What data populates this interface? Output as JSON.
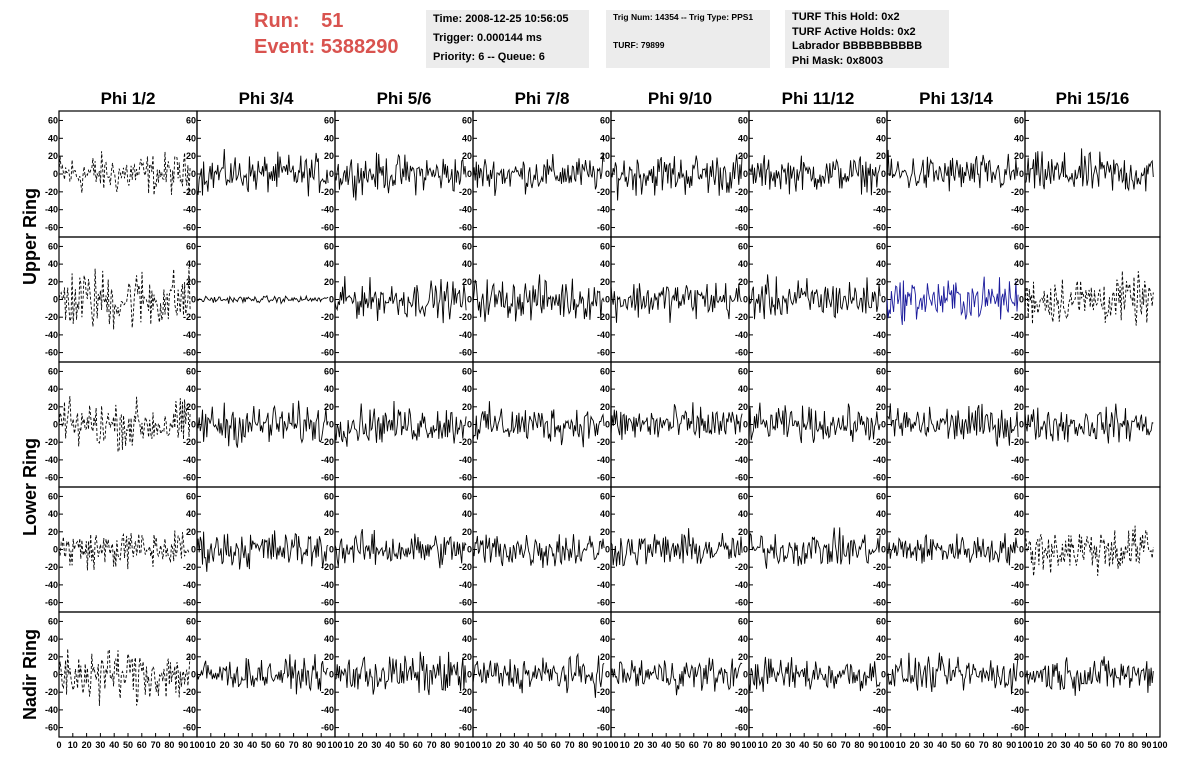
{
  "header": {
    "run_label": "Run:",
    "run_value": "51",
    "event_label": "Event:",
    "event_value": "5388290",
    "time_line": "Time: 2008-12-25 10:56:05",
    "trigger_line": "Trigger: 0.000144 ms",
    "priority_line": "Priority: 6 -- Queue: 6",
    "trig_num_line": "Trig Num: 14354 -- Trig Type: PPS1",
    "turf_line": "TURF: 79899",
    "turf_this_hold": "TURF This Hold: 0x2",
    "turf_active_holds": "TURF Active Holds: 0x2",
    "labrador": "Labrador BBBBBBBBBB",
    "phi_mask": "Phi Mask: 0x8003"
  },
  "colors": {
    "run_text": "#d9534f",
    "info_bg": "#ececec",
    "trace": "#000000",
    "highlight_trace": "#1c1c9c"
  },
  "chart_data": {
    "type": "line",
    "columns": [
      "Phi 1/2",
      "Phi 3/4",
      "Phi 5/6",
      "Phi 7/8",
      "Phi 9/10",
      "Phi 11/12",
      "Phi 13/14",
      "Phi 15/16"
    ],
    "row_groups": [
      {
        "label": "Upper Ring",
        "rows": [
          0,
          1
        ]
      },
      {
        "label": "Lower Ring",
        "rows": [
          2,
          3
        ]
      },
      {
        "label": "Nadir Ring",
        "rows": [
          4
        ]
      }
    ],
    "xlim": [
      0,
      100
    ],
    "ylim": [
      -65,
      65
    ],
    "yticks": [
      -60,
      -40,
      -20,
      0,
      20,
      40,
      60
    ],
    "ytick_labels": [
      "-60",
      "-40",
      "-20",
      "0",
      "20",
      "40",
      "60"
    ],
    "xticks": [
      0,
      10,
      20,
      30,
      40,
      50,
      60,
      70,
      80,
      90,
      100
    ],
    "xtick_labels_first": [
      "0",
      "10",
      "20",
      "30",
      "40",
      "50",
      "60",
      "70",
      "80",
      "90",
      "100"
    ],
    "xtick_labels_other": [
      "10",
      "20",
      "30",
      "40",
      "50",
      "60",
      "70",
      "80",
      "90",
      "100"
    ],
    "trace_x_range": [
      0,
      95
    ],
    "traces": [
      [
        {
          "amp": 12,
          "dashed": true
        },
        {
          "amp": 11,
          "dashed": false
        },
        {
          "amp": 11,
          "dashed": false
        },
        {
          "amp": 10,
          "dashed": false
        },
        {
          "amp": 12,
          "dashed": false
        },
        {
          "amp": 10,
          "dashed": false
        },
        {
          "amp": 11,
          "dashed": false
        },
        {
          "amp": 12,
          "dashed": false
        }
      ],
      [
        {
          "amp": 18,
          "dashed": true
        },
        {
          "amp": 2,
          "dashed": false
        },
        {
          "amp": 11,
          "dashed": false
        },
        {
          "amp": 12,
          "dashed": false
        },
        {
          "amp": 11,
          "dashed": false
        },
        {
          "amp": 12,
          "dashed": false
        },
        {
          "amp": 12,
          "dashed": false,
          "highlight": true
        },
        {
          "amp": 14,
          "dashed": true
        }
      ],
      [
        {
          "amp": 14,
          "dashed": true
        },
        {
          "amp": 12,
          "dashed": false
        },
        {
          "amp": 11,
          "dashed": false
        },
        {
          "amp": 11,
          "dashed": false
        },
        {
          "amp": 11,
          "dashed": false
        },
        {
          "amp": 10,
          "dashed": false
        },
        {
          "amp": 11,
          "dashed": false
        },
        {
          "amp": 10,
          "dashed": false
        }
      ],
      [
        {
          "amp": 11,
          "dashed": true
        },
        {
          "amp": 11,
          "dashed": false
        },
        {
          "amp": 10,
          "dashed": false
        },
        {
          "amp": 11,
          "dashed": false
        },
        {
          "amp": 10,
          "dashed": false
        },
        {
          "amp": 10,
          "dashed": false
        },
        {
          "amp": 9,
          "dashed": false
        },
        {
          "amp": 14,
          "dashed": true
        }
      ],
      [
        {
          "amp": 16,
          "dashed": true
        },
        {
          "amp": 9,
          "dashed": false
        },
        {
          "amp": 12,
          "dashed": false
        },
        {
          "amp": 10,
          "dashed": false
        },
        {
          "amp": 10,
          "dashed": false
        },
        {
          "amp": 10,
          "dashed": false
        },
        {
          "amp": 10,
          "dashed": false
        },
        {
          "amp": 10,
          "dashed": false
        }
      ]
    ]
  }
}
